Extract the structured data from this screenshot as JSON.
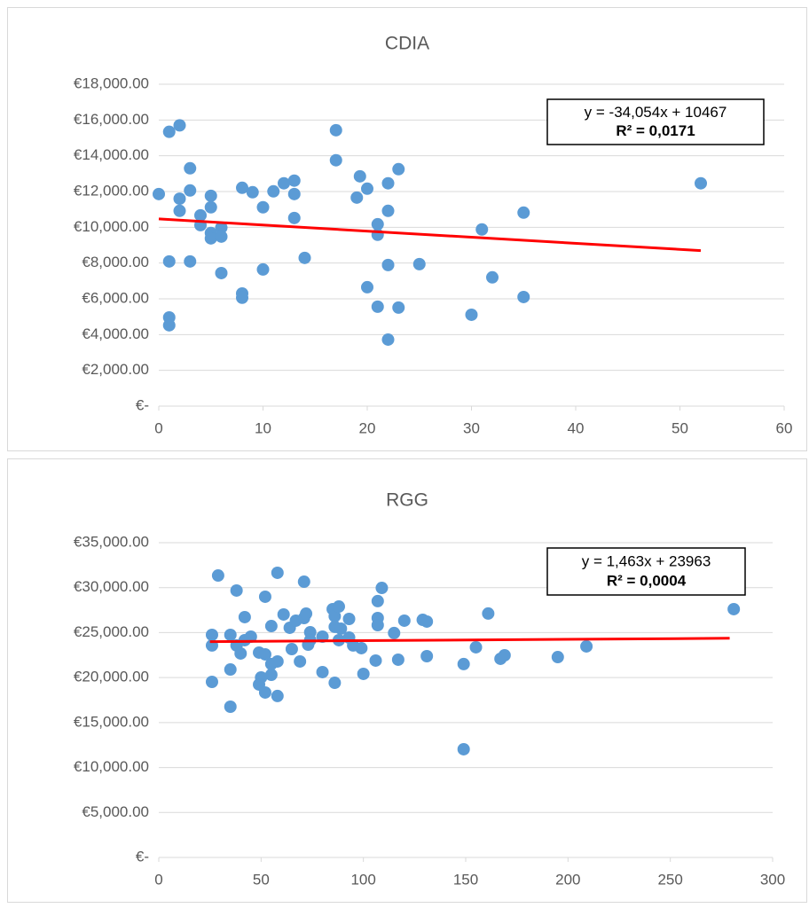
{
  "chart_data": [
    {
      "type": "scatter",
      "title": "CDIA",
      "color": "#5b9bd5",
      "grid": true,
      "x": [
        0,
        1,
        2,
        1,
        1,
        1,
        2,
        2,
        3,
        3,
        3,
        4,
        4,
        5,
        5,
        5,
        5,
        6,
        6,
        6,
        8,
        8,
        8,
        9,
        10,
        10,
        11,
        12,
        13,
        13,
        13,
        14,
        17,
        17,
        19,
        19.3,
        20,
        20,
        21,
        21,
        21,
        22,
        22,
        22,
        22,
        23,
        23,
        25,
        30,
        31,
        32,
        35,
        35,
        52
      ],
      "values": [
        11860,
        15340,
        15700,
        4960,
        4520,
        8090,
        11600,
        10920,
        13300,
        12060,
        8090,
        10670,
        10120,
        11760,
        11120,
        9680,
        9380,
        9980,
        9480,
        7440,
        12210,
        6300,
        6060,
        11960,
        11120,
        7640,
        12010,
        12460,
        12610,
        11860,
        10520,
        8290,
        15430,
        13750,
        11660,
        12850,
        12160,
        6650,
        10170,
        9580,
        5560,
        12460,
        10920,
        7890,
        3720,
        13250,
        5510,
        7940,
        5110,
        9880,
        7200,
        10820,
        6100,
        12460
      ],
      "xlim": [
        0,
        60
      ],
      "xticks": [
        0,
        10,
        20,
        30,
        40,
        50,
        60
      ],
      "ylim": [
        0,
        18000
      ],
      "yticks": [
        {
          "value": 0,
          "label": "€-"
        },
        {
          "value": 2000,
          "label": "€2,000.00"
        },
        {
          "value": 4000,
          "label": "€4,000.00"
        },
        {
          "value": 6000,
          "label": "€6,000.00"
        },
        {
          "value": 8000,
          "label": "€8,000.00"
        },
        {
          "value": 10000,
          "label": "€10,000.00"
        },
        {
          "value": 12000,
          "label": "€12,000.00"
        },
        {
          "value": 14000,
          "label": "€14,000.00"
        },
        {
          "value": 16000,
          "label": "€16,000.00"
        },
        {
          "value": 18000,
          "label": "€18,000.00"
        }
      ],
      "trendline": {
        "color": "#ff0000",
        "x": [
          0,
          52
        ],
        "y": [
          10467,
          8696
        ]
      },
      "equation": "y = -34,054x + 10467",
      "r_squared": "R² = 0,0171"
    },
    {
      "type": "scatter",
      "title": "RGG",
      "color": "#5b9bd5",
      "grid": true,
      "x": [
        26,
        26,
        26,
        29,
        35,
        35,
        35,
        38,
        38,
        40,
        42,
        42,
        45,
        49,
        50,
        49,
        52,
        52,
        52,
        55,
        55,
        55,
        58,
        58,
        58,
        61,
        64,
        65,
        67,
        69,
        71,
        71,
        72,
        73,
        74,
        74,
        80,
        80,
        85,
        86,
        86,
        86,
        88,
        88,
        89,
        93,
        93,
        95,
        99,
        100,
        107,
        107,
        107,
        106,
        109,
        115,
        117,
        120,
        129,
        131,
        131,
        149,
        149,
        155,
        161,
        167,
        169,
        195,
        209,
        281
      ],
      "values": [
        24750,
        23570,
        19520,
        31350,
        24750,
        20900,
        16760,
        29680,
        23570,
        22680,
        26720,
        24160,
        24550,
        22780,
        20020,
        19230,
        28990,
        22580,
        18340,
        25730,
        21500,
        20310,
        31650,
        21790,
        17950,
        27020,
        25540,
        23170,
        26330,
        21790,
        30660,
        26620,
        27110,
        23660,
        25040,
        24160,
        24550,
        20610,
        27610,
        19420,
        26820,
        25640,
        27900,
        24160,
        25440,
        24450,
        26520,
        23570,
        23270,
        20410,
        28500,
        26620,
        25830,
        21890,
        29970,
        24950,
        21990,
        26330,
        26420,
        26230,
        22380,
        21500,
        12030,
        23370,
        27120,
        22090,
        22480,
        22280,
        23470,
        27610
      ],
      "xlim": [
        0,
        300
      ],
      "xticks": [
        0,
        50,
        100,
        150,
        200,
        250,
        300
      ],
      "ylim": [
        0,
        35000
      ],
      "yticks": [
        {
          "value": 0,
          "label": "€-"
        },
        {
          "value": 5000,
          "label": "€5,000.00"
        },
        {
          "value": 10000,
          "label": "€10,000.00"
        },
        {
          "value": 15000,
          "label": "€15,000.00"
        },
        {
          "value": 20000,
          "label": "€20,000.00"
        },
        {
          "value": 25000,
          "label": "€25,000.00"
        },
        {
          "value": 30000,
          "label": "€30,000.00"
        },
        {
          "value": 35000,
          "label": "€35,000.00"
        }
      ],
      "trendline": {
        "color": "#ff0000",
        "x": [
          25,
          279
        ],
        "y": [
          24000,
          24371
        ]
      },
      "equation": "y = 1,463x + 23963",
      "r_squared": "R² = 0,0004"
    }
  ]
}
